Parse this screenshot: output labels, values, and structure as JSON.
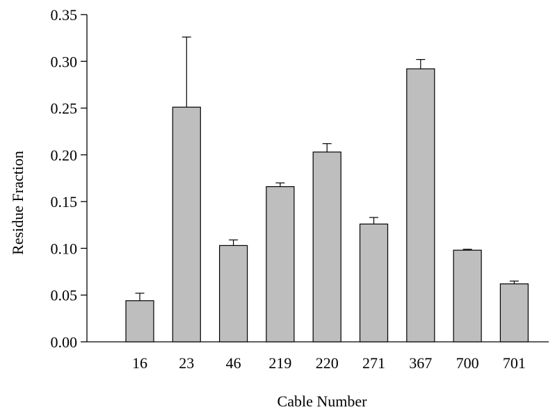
{
  "chart_data": {
    "type": "bar",
    "title": "",
    "xlabel": "Cable Number",
    "ylabel": "Residue Fraction",
    "categories": [
      "16",
      "23",
      "46",
      "219",
      "220",
      "271",
      "367",
      "700",
      "701"
    ],
    "values": [
      0.044,
      0.251,
      0.103,
      0.166,
      0.203,
      0.126,
      0.292,
      0.098,
      0.062
    ],
    "error_upper": [
      0.008,
      0.075,
      0.006,
      0.004,
      0.009,
      0.007,
      0.01,
      0.001,
      0.003
    ],
    "ylim": [
      0,
      0.35
    ],
    "yticks": [
      "0.00",
      "0.05",
      "0.10",
      "0.15",
      "0.20",
      "0.25",
      "0.30",
      "0.35"
    ],
    "ytick_values": [
      0,
      0.05,
      0.1,
      0.15,
      0.2,
      0.25,
      0.3,
      0.35
    ],
    "grid": false,
    "legend": "none",
    "colors": {
      "bar_fill": "#bebebe",
      "bar_stroke": "#000000",
      "axis": "#000000"
    }
  }
}
